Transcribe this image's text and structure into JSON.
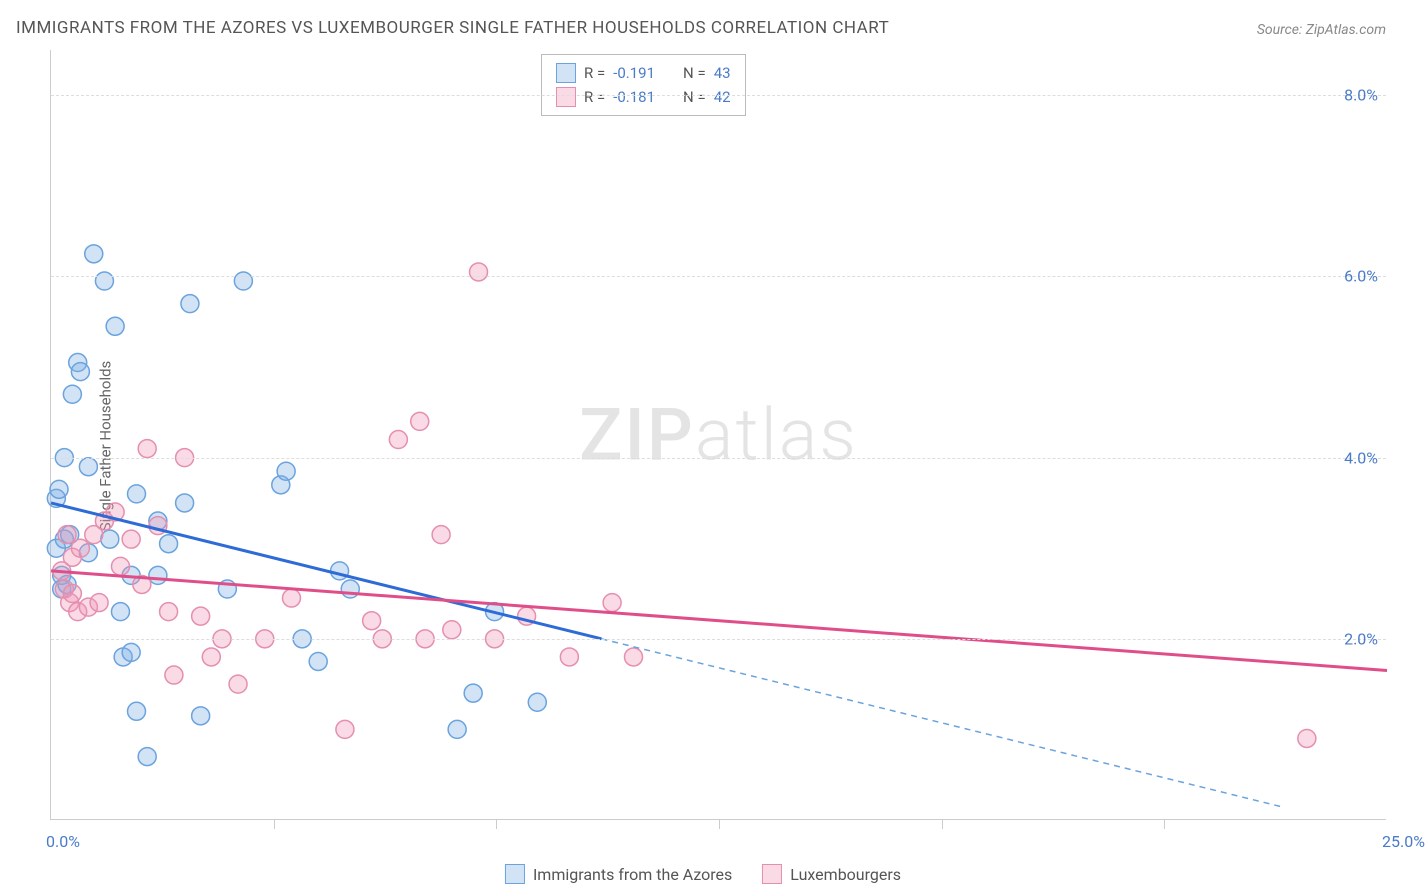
{
  "title": "IMMIGRANTS FROM THE AZORES VS LUXEMBOURGER SINGLE FATHER HOUSEHOLDS CORRELATION CHART",
  "source": "Source: ZipAtlas.com",
  "ylabel": "Single Father Households",
  "watermark_zip": "ZIP",
  "watermark_atlas": "atlas",
  "chart": {
    "type": "scatter",
    "xlim": [
      0,
      25
    ],
    "ylim": [
      0,
      8.5
    ],
    "x_ticks": [
      0,
      25
    ],
    "x_tick_labels": [
      "0.0%",
      "25.0%"
    ],
    "x_minor_ticks": [
      4.17,
      8.33,
      12.5,
      16.67,
      20.83
    ],
    "y_ticks": [
      2,
      4,
      6,
      8
    ],
    "y_tick_labels": [
      "2.0%",
      "4.0%",
      "6.0%",
      "8.0%"
    ],
    "background_color": "#ffffff",
    "grid_color": "#dddddd",
    "axis_color": "#cccccc",
    "marker_radius": 9,
    "marker_stroke_width": 1.5,
    "series": [
      {
        "name": "Immigrants from the Azores",
        "color_fill": "rgba(125,175,230,0.35)",
        "color_stroke": "#6aa3de",
        "R": "-0.191",
        "N": "43",
        "trend_line": {
          "x1": 0,
          "y1": 3.5,
          "x2": 10.3,
          "y2": 2.0,
          "color": "#2e6bd6",
          "width": 3
        },
        "trend_ext": {
          "x1": 10.3,
          "y1": 2.0,
          "x2": 23.0,
          "y2": 0.15,
          "color": "#6aa3de",
          "width": 1.5,
          "dash": "6,5"
        },
        "points": [
          [
            0.1,
            3.0
          ],
          [
            0.1,
            3.55
          ],
          [
            0.15,
            3.65
          ],
          [
            0.2,
            2.55
          ],
          [
            0.2,
            2.7
          ],
          [
            0.25,
            3.1
          ],
          [
            0.25,
            4.0
          ],
          [
            0.3,
            2.6
          ],
          [
            0.35,
            3.15
          ],
          [
            0.4,
            4.7
          ],
          [
            0.5,
            5.05
          ],
          [
            0.55,
            4.95
          ],
          [
            0.7,
            3.9
          ],
          [
            0.7,
            2.95
          ],
          [
            0.8,
            6.25
          ],
          [
            1.0,
            5.95
          ],
          [
            1.1,
            3.1
          ],
          [
            1.2,
            5.45
          ],
          [
            1.3,
            2.3
          ],
          [
            1.35,
            1.8
          ],
          [
            1.5,
            1.85
          ],
          [
            1.5,
            2.7
          ],
          [
            1.6,
            3.6
          ],
          [
            1.6,
            1.2
          ],
          [
            1.8,
            0.7
          ],
          [
            2.0,
            3.3
          ],
          [
            2.0,
            2.7
          ],
          [
            2.2,
            3.05
          ],
          [
            2.5,
            3.5
          ],
          [
            2.6,
            5.7
          ],
          [
            2.8,
            1.15
          ],
          [
            3.3,
            2.55
          ],
          [
            3.6,
            5.95
          ],
          [
            4.3,
            3.7
          ],
          [
            4.4,
            3.85
          ],
          [
            4.7,
            2.0
          ],
          [
            5.0,
            1.75
          ],
          [
            5.4,
            2.75
          ],
          [
            5.6,
            2.55
          ],
          [
            7.6,
            1.0
          ],
          [
            7.9,
            1.4
          ],
          [
            8.3,
            2.3
          ],
          [
            9.1,
            1.3
          ]
        ]
      },
      {
        "name": "Luxembourgers",
        "color_fill": "rgba(240,150,180,0.35)",
        "color_stroke": "#e58fb0",
        "R": "-0.181",
        "N": "42",
        "trend_line": {
          "x1": 0,
          "y1": 2.75,
          "x2": 25,
          "y2": 1.65,
          "color": "#e04e8a",
          "width": 3
        },
        "points": [
          [
            0.2,
            2.75
          ],
          [
            0.25,
            2.55
          ],
          [
            0.3,
            3.15
          ],
          [
            0.35,
            2.4
          ],
          [
            0.4,
            2.9
          ],
          [
            0.4,
            2.5
          ],
          [
            0.5,
            2.3
          ],
          [
            0.55,
            3.0
          ],
          [
            0.7,
            2.35
          ],
          [
            0.8,
            3.15
          ],
          [
            0.9,
            2.4
          ],
          [
            1.0,
            3.3
          ],
          [
            1.2,
            3.4
          ],
          [
            1.3,
            2.8
          ],
          [
            1.5,
            3.1
          ],
          [
            1.7,
            2.6
          ],
          [
            1.8,
            4.1
          ],
          [
            2.0,
            3.25
          ],
          [
            2.2,
            2.3
          ],
          [
            2.3,
            1.6
          ],
          [
            2.5,
            4.0
          ],
          [
            2.8,
            2.25
          ],
          [
            3.0,
            1.8
          ],
          [
            3.2,
            2.0
          ],
          [
            3.5,
            1.5
          ],
          [
            4.0,
            2.0
          ],
          [
            4.5,
            2.45
          ],
          [
            5.5,
            1.0
          ],
          [
            6.0,
            2.2
          ],
          [
            6.2,
            2.0
          ],
          [
            6.5,
            4.2
          ],
          [
            6.9,
            4.4
          ],
          [
            7.0,
            2.0
          ],
          [
            7.3,
            3.15
          ],
          [
            7.5,
            2.1
          ],
          [
            8.0,
            6.05
          ],
          [
            8.3,
            2.0
          ],
          [
            8.9,
            2.25
          ],
          [
            9.7,
            1.8
          ],
          [
            10.5,
            2.4
          ],
          [
            10.9,
            1.8
          ],
          [
            23.5,
            0.9
          ]
        ]
      }
    ]
  },
  "legend_top": {
    "rows": [
      {
        "swatch_fill": "rgba(125,175,230,0.35)",
        "swatch_stroke": "#6aa3de",
        "R_label": "R = ",
        "R": "-0.191",
        "N_label": "N = ",
        "N": "43"
      },
      {
        "swatch_fill": "rgba(240,150,180,0.35)",
        "swatch_stroke": "#e58fb0",
        "R_label": "R = ",
        "R": "-0.181",
        "N_label": "N = ",
        "N": "42"
      }
    ]
  },
  "legend_bottom": [
    {
      "swatch_fill": "rgba(125,175,230,0.35)",
      "swatch_stroke": "#6aa3de",
      "label": "Immigrants from the Azores"
    },
    {
      "swatch_fill": "rgba(240,150,180,0.35)",
      "swatch_stroke": "#e58fb0",
      "label": "Luxembourgers"
    }
  ]
}
